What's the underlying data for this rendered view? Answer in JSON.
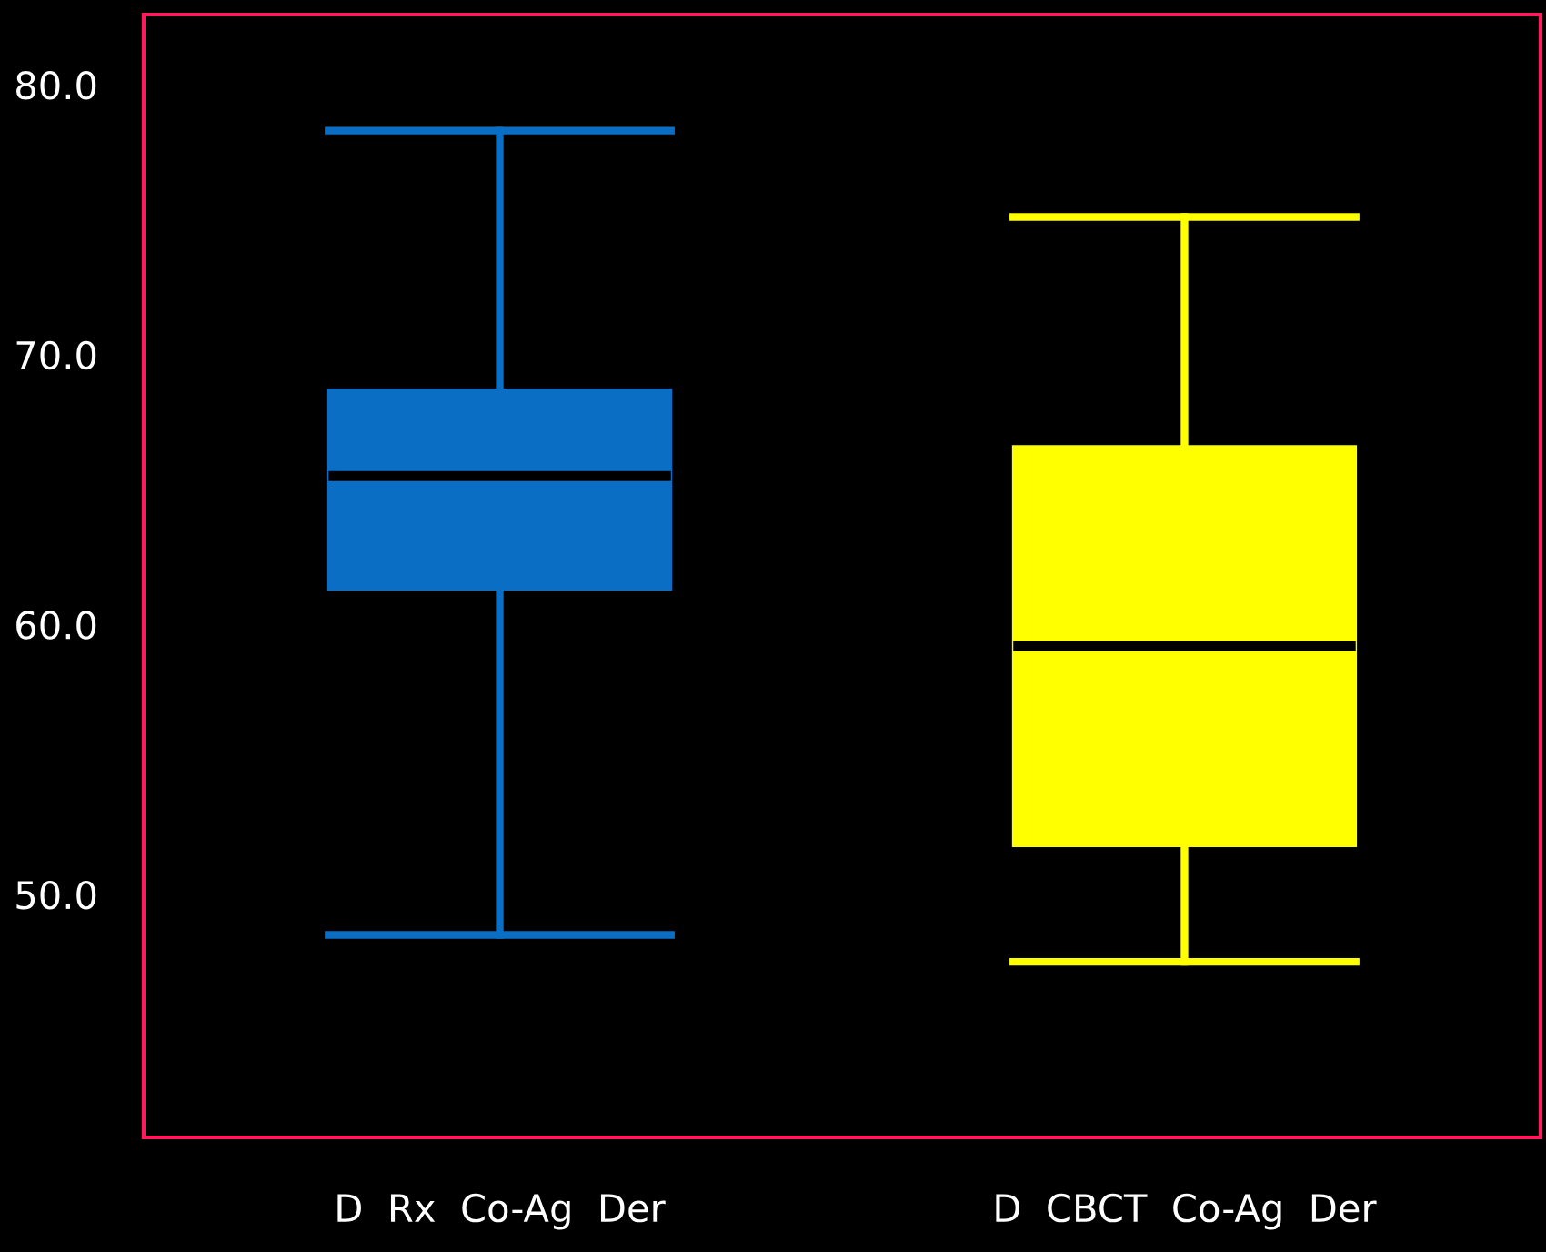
{
  "chart_data": {
    "type": "box",
    "categories": [
      "D  Rx  Co-Ag  Der",
      "D  CBCT  Co-Ag  Der"
    ],
    "boxes": [
      {
        "low": 48.5,
        "q1": 61.3,
        "median": 65.5,
        "q3": 68.7,
        "high": 78.3
      },
      {
        "low": 47.5,
        "q1": 51.8,
        "median": 59.2,
        "q3": 66.6,
        "high": 75.1
      }
    ],
    "colors": [
      "#0a6fc4",
      "#ffff00"
    ],
    "ylim": [
      41,
      82.6
    ],
    "yticks": [
      {
        "value": 50,
        "label": "50.0"
      },
      {
        "value": 60,
        "label": "60.0"
      },
      {
        "value": 70,
        "label": "70.0"
      },
      {
        "value": 80,
        "label": "80.0"
      }
    ],
    "grid": false,
    "legend": false
  }
}
